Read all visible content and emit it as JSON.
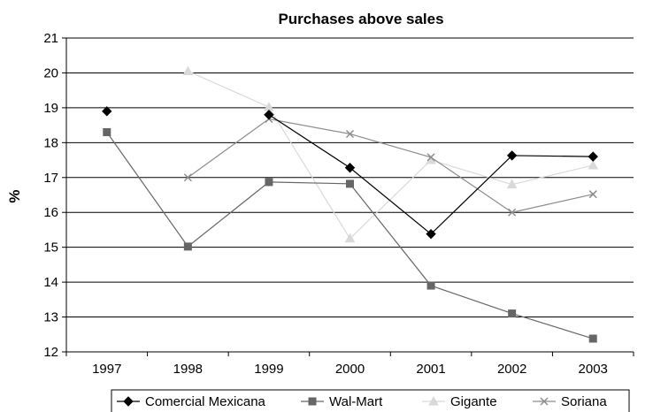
{
  "chart_data": {
    "type": "line",
    "title": "Purchases above sales",
    "xlabel": "",
    "ylabel": "%",
    "categories": [
      "1997",
      "1998",
      "1999",
      "2000",
      "2001",
      "2002",
      "2003"
    ],
    "ylim": [
      12,
      21
    ],
    "yticks": [
      12,
      13,
      14,
      15,
      16,
      17,
      18,
      19,
      20,
      21
    ],
    "grid": true,
    "legend_position": "bottom",
    "series": [
      {
        "name": "Comercial Mexicana",
        "color": "#000000",
        "marker": "diamond",
        "values": [
          18.9,
          null,
          18.8,
          17.28,
          15.38,
          17.63,
          17.6
        ]
      },
      {
        "name": "Wal-Mart",
        "color": "#666666",
        "marker": "square",
        "values": [
          18.3,
          15.02,
          16.87,
          16.82,
          13.9,
          13.1,
          12.38
        ]
      },
      {
        "name": "Gigante",
        "color": "#d9d9d9",
        "marker": "triangle",
        "values": [
          null,
          20.05,
          19.02,
          15.25,
          17.5,
          16.8,
          17.35
        ]
      },
      {
        "name": "Soriana",
        "color": "#8c8c8c",
        "marker": "x",
        "values": [
          null,
          17.0,
          18.68,
          18.25,
          17.58,
          16.0,
          16.52
        ]
      }
    ]
  }
}
